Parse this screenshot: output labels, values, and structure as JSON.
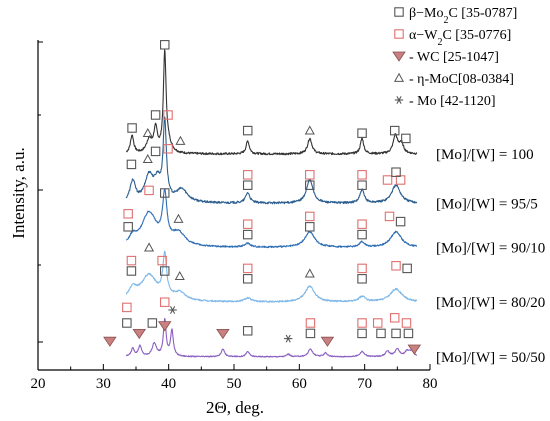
{
  "chart_data": {
    "type": "line",
    "xlabel": "2Θ, deg.",
    "ylabel": "Intensity, a.u.",
    "xlim": [
      20,
      80
    ],
    "xticks": [
      20,
      30,
      40,
      50,
      60,
      70,
      80
    ],
    "yticks_labeled": false,
    "grid": false,
    "legend_position": "top-right",
    "legend": [
      {
        "marker": "open-square",
        "color": "#555555",
        "phase": "β−Mo",
        "sub": "2",
        "tail": "C [35-0787]"
      },
      {
        "marker": "open-square",
        "color": "#e07070",
        "phase": "α−W",
        "sub": "2",
        "tail": "C [35-0776]"
      },
      {
        "marker": "down-triangle",
        "color": "#c98080",
        "phase": "- WC [25-1047]",
        "sub": "",
        "tail": ""
      },
      {
        "marker": "open-triangle",
        "color": "#555555",
        "phase": "- η-MoC[08-0384]",
        "sub": "",
        "tail": ""
      },
      {
        "marker": "asterisk",
        "color": "#555555",
        "phase": "- Mo [42-1120]",
        "sub": "",
        "tail": ""
      }
    ],
    "series": [
      {
        "name": "[Mo]/[W] = 100",
        "color": "#333333",
        "baseline": 0.8,
        "noise": 0.004,
        "peaks": [
          [
            34.4,
            0.07,
            0.3
          ],
          [
            37.0,
            0.05,
            0.5
          ],
          [
            38.0,
            0.09,
            0.35
          ],
          [
            39.4,
            0.38,
            0.25
          ],
          [
            40.0,
            0.03,
            0.6
          ],
          [
            52.1,
            0.05,
            0.3
          ],
          [
            61.6,
            0.06,
            0.4
          ],
          [
            69.6,
            0.06,
            0.3
          ],
          [
            74.7,
            0.07,
            0.4
          ],
          [
            75.6,
            0.04,
            0.4
          ]
        ],
        "markers": [
          {
            "type": "open-square",
            "color": "#555555",
            "x": 34.4,
            "y": 0.9
          },
          {
            "type": "open-triangle",
            "color": "#555555",
            "x": 36.8,
            "y": 0.88
          },
          {
            "type": "open-square",
            "color": "#555555",
            "x": 38.0,
            "y": 0.95
          },
          {
            "type": "open-square",
            "color": "#e07070",
            "x": 39.9,
            "y": 0.95
          },
          {
            "type": "open-square",
            "color": "#555555",
            "x": 39.4,
            "y": 1.22
          },
          {
            "type": "open-triangle",
            "color": "#555555",
            "x": 41.8,
            "y": 0.85
          },
          {
            "type": "open-square",
            "color": "#555555",
            "x": 52.1,
            "y": 0.89
          },
          {
            "type": "open-triangle",
            "color": "#555555",
            "x": 61.6,
            "y": 0.89
          },
          {
            "type": "open-square",
            "color": "#555555",
            "x": 69.6,
            "y": 0.88
          },
          {
            "type": "open-square",
            "color": "#555555",
            "x": 74.6,
            "y": 0.89
          },
          {
            "type": "open-square",
            "color": "#555555",
            "x": 76.3,
            "y": 0.86
          }
        ]
      },
      {
        "name": "[Mo]/[W] = 95/5",
        "color": "#2b5e8e",
        "baseline": 0.61,
        "noise": 0.004,
        "peaks": [
          [
            34.5,
            0.08,
            0.5
          ],
          [
            37.0,
            0.1,
            0.8
          ],
          [
            38.3,
            0.07,
            0.6
          ],
          [
            39.4,
            0.3,
            0.3
          ],
          [
            42.0,
            0.05,
            1.1
          ],
          [
            52.1,
            0.04,
            0.4
          ],
          [
            61.6,
            0.09,
            0.6
          ],
          [
            69.6,
            0.05,
            0.4
          ],
          [
            74.8,
            0.07,
            0.8
          ]
        ],
        "markers": [
          {
            "type": "open-square",
            "color": "#555555",
            "x": 34.3,
            "y": 0.76
          },
          {
            "type": "open-triangle",
            "color": "#555555",
            "x": 36.8,
            "y": 0.78
          },
          {
            "type": "open-square",
            "color": "#555555",
            "x": 38.0,
            "y": 0.81
          },
          {
            "type": "open-square",
            "color": "#e07070",
            "x": 39.9,
            "y": 0.82
          },
          {
            "type": "open-square",
            "color": "#e07070",
            "x": 52.1,
            "y": 0.72
          },
          {
            "type": "open-square",
            "color": "#555555",
            "x": 52.1,
            "y": 0.68
          },
          {
            "type": "open-square",
            "color": "#e07070",
            "x": 61.6,
            "y": 0.72
          },
          {
            "type": "open-square",
            "color": "#555555",
            "x": 61.6,
            "y": 0.68
          },
          {
            "type": "open-square",
            "color": "#e07070",
            "x": 69.6,
            "y": 0.72
          },
          {
            "type": "open-square",
            "color": "#555555",
            "x": 69.6,
            "y": 0.68
          },
          {
            "type": "open-square",
            "color": "#e07070",
            "x": 73.5,
            "y": 0.7
          },
          {
            "type": "open-square",
            "color": "#e07070",
            "x": 75.5,
            "y": 0.7
          },
          {
            "type": "open-square",
            "color": "#555555",
            "x": 74.8,
            "y": 0.73
          }
        ]
      },
      {
        "name": "[Mo]/[W] = 90/10",
        "color": "#2f6eb5",
        "baseline": 0.44,
        "noise": 0.003,
        "peaks": [
          [
            34.5,
            0.03,
            0.6
          ],
          [
            37.0,
            0.13,
            1.4
          ],
          [
            39.4,
            0.18,
            0.4
          ],
          [
            41.5,
            0.05,
            1.2
          ],
          [
            52.1,
            0.015,
            0.5
          ],
          [
            61.6,
            0.06,
            0.9
          ],
          [
            69.6,
            0.02,
            0.5
          ],
          [
            74.8,
            0.06,
            1.0
          ]
        ],
        "markers": [
          {
            "type": "open-square",
            "color": "#e07070",
            "x": 33.8,
            "y": 0.57
          },
          {
            "type": "open-square",
            "color": "#555555",
            "x": 33.8,
            "y": 0.52
          },
          {
            "type": "open-square",
            "color": "#e07070",
            "x": 37.0,
            "y": 0.66
          },
          {
            "type": "open-square",
            "color": "#555555",
            "x": 39.4,
            "y": 0.65
          },
          {
            "type": "open-triangle",
            "color": "#555555",
            "x": 41.5,
            "y": 0.55
          },
          {
            "type": "open-square",
            "color": "#e07070",
            "x": 52.1,
            "y": 0.53
          },
          {
            "type": "open-square",
            "color": "#555555",
            "x": 52.1,
            "y": 0.49
          },
          {
            "type": "open-square",
            "color": "#e07070",
            "x": 61.6,
            "y": 0.56
          },
          {
            "type": "open-square",
            "color": "#555555",
            "x": 61.6,
            "y": 0.52
          },
          {
            "type": "open-square",
            "color": "#e07070",
            "x": 69.6,
            "y": 0.53
          },
          {
            "type": "open-square",
            "color": "#555555",
            "x": 69.6,
            "y": 0.49
          },
          {
            "type": "open-square",
            "color": "#e07070",
            "x": 73.8,
            "y": 0.56
          },
          {
            "type": "open-square",
            "color": "#555555",
            "x": 75.5,
            "y": 0.54
          }
        ]
      },
      {
        "name": "[Mo]/[W] = 80/20",
        "color": "#7fb8e8",
        "baseline": 0.23,
        "noise": 0.003,
        "peaks": [
          [
            34.5,
            0.04,
            0.8
          ],
          [
            37.0,
            0.1,
            1.5
          ],
          [
            39.4,
            0.16,
            0.35
          ],
          [
            41.7,
            0.03,
            1.1
          ],
          [
            52.1,
            0.015,
            0.6
          ],
          [
            61.6,
            0.06,
            0.9
          ],
          [
            69.6,
            0.02,
            0.6
          ],
          [
            74.8,
            0.05,
            1.1
          ]
        ],
        "markers": [
          {
            "type": "open-square",
            "color": "#e07070",
            "x": 34.3,
            "y": 0.39
          },
          {
            "type": "open-square",
            "color": "#555555",
            "x": 34.3,
            "y": 0.35
          },
          {
            "type": "open-triangle",
            "color": "#555555",
            "x": 37.0,
            "y": 0.44
          },
          {
            "type": "open-square",
            "color": "#e07070",
            "x": 39.0,
            "y": 0.39
          },
          {
            "type": "open-square",
            "color": "#555555",
            "x": 39.4,
            "y": 0.35
          },
          {
            "type": "open-triangle",
            "color": "#555555",
            "x": 41.7,
            "y": 0.33
          },
          {
            "type": "open-square",
            "color": "#e07070",
            "x": 52.1,
            "y": 0.36
          },
          {
            "type": "open-square",
            "color": "#555555",
            "x": 52.1,
            "y": 0.32
          },
          {
            "type": "open-triangle",
            "color": "#555555",
            "x": 61.6,
            "y": 0.34
          },
          {
            "type": "open-square",
            "color": "#e07070",
            "x": 69.6,
            "y": 0.36
          },
          {
            "type": "open-square",
            "color": "#555555",
            "x": 69.6,
            "y": 0.32
          },
          {
            "type": "open-square",
            "color": "#e07070",
            "x": 74.8,
            "y": 0.37
          },
          {
            "type": "open-square",
            "color": "#555555",
            "x": 76.5,
            "y": 0.36
          }
        ]
      },
      {
        "name": "[Mo]/[W] = 50/50",
        "color": "#8a5fc2",
        "baseline": 0.02,
        "noise": 0.002,
        "peaks": [
          [
            31.5,
            0.015,
            0.3
          ],
          [
            34.5,
            0.03,
            0.3
          ],
          [
            35.6,
            0.04,
            0.3
          ],
          [
            37.8,
            0.05,
            0.4
          ],
          [
            39.4,
            0.14,
            0.25
          ],
          [
            40.5,
            0.1,
            0.25
          ],
          [
            48.3,
            0.03,
            0.3
          ],
          [
            52.1,
            0.02,
            0.3
          ],
          [
            58.3,
            0.01,
            0.3
          ],
          [
            61.7,
            0.03,
            0.4
          ],
          [
            64.0,
            0.015,
            0.3
          ],
          [
            69.6,
            0.02,
            0.4
          ],
          [
            73.5,
            0.02,
            0.4
          ],
          [
            75.0,
            0.03,
            0.4
          ],
          [
            76.5,
            0.02,
            0.4
          ],
          [
            77.2,
            0.02,
            0.4
          ]
        ],
        "markers": [
          {
            "type": "down-triangle",
            "color": "#c98080",
            "x": 31.0,
            "y": 0.08
          },
          {
            "type": "open-square",
            "color": "#e07070",
            "x": 33.6,
            "y": 0.21
          },
          {
            "type": "open-square",
            "color": "#555555",
            "x": 33.6,
            "y": 0.15
          },
          {
            "type": "down-triangle",
            "color": "#c98080",
            "x": 35.5,
            "y": 0.11
          },
          {
            "type": "open-square",
            "color": "#555555",
            "x": 37.5,
            "y": 0.15
          },
          {
            "type": "open-square",
            "color": "#e07070",
            "x": 39.4,
            "y": 0.23
          },
          {
            "type": "down-triangle",
            "color": "#c98080",
            "x": 39.4,
            "y": 0.14
          },
          {
            "type": "asterisk",
            "color": "#555555",
            "x": 40.6,
            "y": 0.2
          },
          {
            "type": "down-triangle",
            "color": "#c98080",
            "x": 48.3,
            "y": 0.11
          },
          {
            "type": "open-square",
            "color": "#555555",
            "x": 52.1,
            "y": 0.12
          },
          {
            "type": "asterisk",
            "color": "#555555",
            "x": 58.3,
            "y": 0.09
          },
          {
            "type": "open-square",
            "color": "#e07070",
            "x": 61.7,
            "y": 0.15
          },
          {
            "type": "open-square",
            "color": "#555555",
            "x": 61.7,
            "y": 0.11
          },
          {
            "type": "down-triangle",
            "color": "#c98080",
            "x": 64.3,
            "y": 0.08
          },
          {
            "type": "open-square",
            "color": "#e07070",
            "x": 69.6,
            "y": 0.15
          },
          {
            "type": "open-square",
            "color": "#555555",
            "x": 69.6,
            "y": 0.11
          },
          {
            "type": "open-square",
            "color": "#e07070",
            "x": 72.0,
            "y": 0.15
          },
          {
            "type": "open-square",
            "color": "#555555",
            "x": 72.5,
            "y": 0.11
          },
          {
            "type": "open-square",
            "color": "#e07070",
            "x": 74.6,
            "y": 0.17
          },
          {
            "type": "open-square",
            "color": "#555555",
            "x": 74.8,
            "y": 0.11
          },
          {
            "type": "open-square",
            "color": "#e07070",
            "x": 76.4,
            "y": 0.15
          },
          {
            "type": "open-square",
            "color": "#555555",
            "x": 76.7,
            "y": 0.11
          },
          {
            "type": "down-triangle",
            "color": "#c98080",
            "x": 77.6,
            "y": 0.05
          }
        ]
      }
    ]
  }
}
